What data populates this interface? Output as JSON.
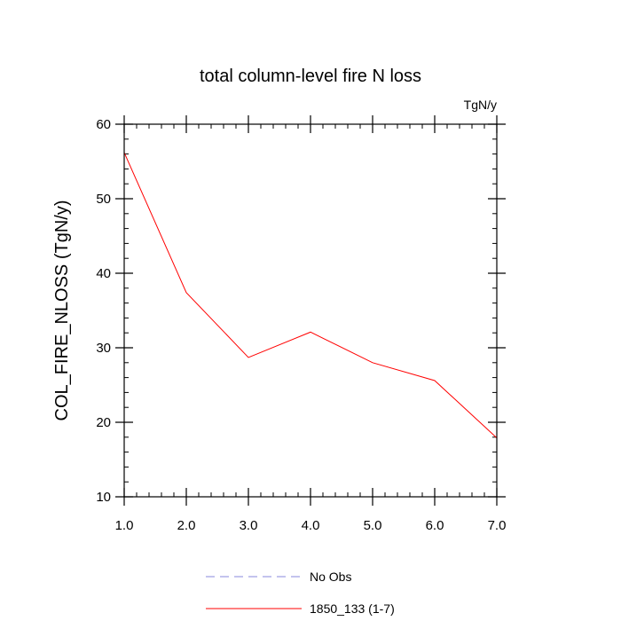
{
  "chart_data": {
    "type": "line",
    "title": "total column-level fire N loss",
    "units_label": "TgN/y",
    "xlabel": "",
    "ylabel": "COL_FIRE_NLOSS  (TgN/y)",
    "xlim": [
      1.0,
      7.0
    ],
    "ylim": [
      10,
      60
    ],
    "x_ticks": [
      "1.0",
      "2.0",
      "3.0",
      "4.0",
      "5.0",
      "6.0",
      "7.0"
    ],
    "y_ticks": [
      "10",
      "20",
      "30",
      "40",
      "50",
      "60"
    ],
    "grid": false,
    "legend_position": "bottom",
    "series": [
      {
        "name": "No Obs",
        "color": "#8888dd",
        "dash": "dashed",
        "x": [],
        "values": []
      },
      {
        "name": "1850_133 (1-7)",
        "color": "#ff0000",
        "dash": "solid",
        "x": [
          1,
          2,
          3,
          4,
          5,
          6,
          7
        ],
        "values": [
          56.2,
          37.4,
          28.7,
          32.1,
          28.0,
          25.6,
          17.9
        ]
      }
    ]
  }
}
